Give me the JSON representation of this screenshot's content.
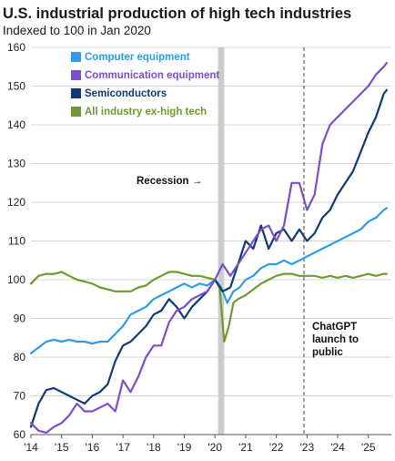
{
  "chart_data": {
    "type": "line",
    "title": "U.S. industrial production of high tech industries",
    "subtitle": "Indexed to 100 in Jan 2020",
    "ylim": [
      60,
      160
    ],
    "yticks": [
      60,
      70,
      80,
      90,
      100,
      110,
      120,
      130,
      140,
      150,
      160
    ],
    "xlim": [
      2014.0,
      2025.75
    ],
    "xticks": [
      {
        "value": 2014,
        "label": "'14"
      },
      {
        "value": 2015,
        "label": "'15"
      },
      {
        "value": 2016,
        "label": "'16"
      },
      {
        "value": 2017,
        "label": "'17"
      },
      {
        "value": 2018,
        "label": "'18"
      },
      {
        "value": 2019,
        "label": "'19"
      },
      {
        "value": 2020,
        "label": "'20"
      },
      {
        "value": 2021,
        "label": "'21"
      },
      {
        "value": 2022,
        "label": "'22"
      },
      {
        "value": 2023,
        "label": "'23"
      },
      {
        "value": 2024,
        "label": "'24"
      },
      {
        "value": 2025,
        "label": "'25"
      }
    ],
    "grid": true,
    "legend_position": "top-left",
    "series": [
      {
        "name": "Computer equipment",
        "color": "#2e9be8",
        "points": [
          [
            2014.0,
            81
          ],
          [
            2014.25,
            82.5
          ],
          [
            2014.5,
            84
          ],
          [
            2014.75,
            84.5
          ],
          [
            2015.0,
            84
          ],
          [
            2015.25,
            84.5
          ],
          [
            2015.5,
            84
          ],
          [
            2015.75,
            84
          ],
          [
            2016.0,
            83.5
          ],
          [
            2016.25,
            84
          ],
          [
            2016.5,
            84
          ],
          [
            2016.75,
            86
          ],
          [
            2017.0,
            88
          ],
          [
            2017.25,
            91
          ],
          [
            2017.5,
            92
          ],
          [
            2017.75,
            93
          ],
          [
            2018.0,
            95
          ],
          [
            2018.25,
            96
          ],
          [
            2018.5,
            97
          ],
          [
            2018.75,
            98
          ],
          [
            2019.0,
            99
          ],
          [
            2019.25,
            98
          ],
          [
            2019.5,
            99
          ],
          [
            2019.75,
            98.5
          ],
          [
            2020.0,
            100
          ],
          [
            2020.2,
            98
          ],
          [
            2020.4,
            94
          ],
          [
            2020.6,
            97
          ],
          [
            2020.8,
            98
          ],
          [
            2021.0,
            100
          ],
          [
            2021.25,
            101
          ],
          [
            2021.5,
            103
          ],
          [
            2021.75,
            104
          ],
          [
            2022.0,
            104
          ],
          [
            2022.25,
            105
          ],
          [
            2022.5,
            104
          ],
          [
            2022.75,
            105
          ],
          [
            2023.0,
            106
          ],
          [
            2023.25,
            107
          ],
          [
            2023.5,
            108
          ],
          [
            2023.75,
            109
          ],
          [
            2024.0,
            110
          ],
          [
            2024.25,
            111
          ],
          [
            2024.5,
            112
          ],
          [
            2024.75,
            113
          ],
          [
            2025.0,
            115
          ],
          [
            2025.25,
            116
          ],
          [
            2025.5,
            118
          ],
          [
            2025.6,
            118.5
          ]
        ]
      },
      {
        "name": "Communication equipment",
        "color": "#7b4fc8",
        "points": [
          [
            2014.0,
            63
          ],
          [
            2014.25,
            61
          ],
          [
            2014.5,
            60.5
          ],
          [
            2014.75,
            62
          ],
          [
            2015.0,
            63
          ],
          [
            2015.25,
            65
          ],
          [
            2015.5,
            68
          ],
          [
            2015.75,
            66
          ],
          [
            2016.0,
            66
          ],
          [
            2016.25,
            67
          ],
          [
            2016.5,
            68
          ],
          [
            2016.75,
            66
          ],
          [
            2017.0,
            74
          ],
          [
            2017.25,
            71
          ],
          [
            2017.5,
            75
          ],
          [
            2017.75,
            80
          ],
          [
            2018.0,
            83
          ],
          [
            2018.25,
            83
          ],
          [
            2018.5,
            89
          ],
          [
            2018.75,
            92
          ],
          [
            2019.0,
            93
          ],
          [
            2019.25,
            95
          ],
          [
            2019.5,
            96
          ],
          [
            2019.75,
            97
          ],
          [
            2020.0,
            100
          ],
          [
            2020.25,
            104
          ],
          [
            2020.5,
            101
          ],
          [
            2020.75,
            104
          ],
          [
            2021.0,
            107
          ],
          [
            2021.25,
            110
          ],
          [
            2021.5,
            113
          ],
          [
            2021.75,
            114
          ],
          [
            2022.0,
            110
          ],
          [
            2022.25,
            114
          ],
          [
            2022.5,
            125
          ],
          [
            2022.75,
            125
          ],
          [
            2023.0,
            118
          ],
          [
            2023.25,
            122
          ],
          [
            2023.5,
            135
          ],
          [
            2023.75,
            140
          ],
          [
            2024.0,
            142
          ],
          [
            2024.25,
            144
          ],
          [
            2024.5,
            146
          ],
          [
            2024.75,
            148
          ],
          [
            2025.0,
            150
          ],
          [
            2025.25,
            153
          ],
          [
            2025.5,
            155
          ],
          [
            2025.6,
            156
          ]
        ]
      },
      {
        "name": "Semiconductors",
        "color": "#0f3a73",
        "points": [
          [
            2014.0,
            62
          ],
          [
            2014.25,
            68
          ],
          [
            2014.5,
            71.5
          ],
          [
            2014.75,
            72
          ],
          [
            2015.0,
            71
          ],
          [
            2015.25,
            70
          ],
          [
            2015.5,
            69
          ],
          [
            2015.75,
            68
          ],
          [
            2016.0,
            70
          ],
          [
            2016.25,
            71
          ],
          [
            2016.5,
            73
          ],
          [
            2016.75,
            79
          ],
          [
            2017.0,
            83
          ],
          [
            2017.25,
            84
          ],
          [
            2017.5,
            86
          ],
          [
            2017.75,
            88
          ],
          [
            2018.0,
            91
          ],
          [
            2018.25,
            92
          ],
          [
            2018.5,
            95
          ],
          [
            2018.75,
            93
          ],
          [
            2019.0,
            90
          ],
          [
            2019.25,
            93
          ],
          [
            2019.5,
            95
          ],
          [
            2019.75,
            97
          ],
          [
            2020.0,
            100
          ],
          [
            2020.25,
            97
          ],
          [
            2020.5,
            98
          ],
          [
            2020.75,
            104
          ],
          [
            2021.0,
            110
          ],
          [
            2021.25,
            108
          ],
          [
            2021.5,
            114
          ],
          [
            2021.75,
            108
          ],
          [
            2022.0,
            112
          ],
          [
            2022.25,
            113
          ],
          [
            2022.5,
            110
          ],
          [
            2022.75,
            113
          ],
          [
            2023.0,
            110
          ],
          [
            2023.25,
            112
          ],
          [
            2023.5,
            116
          ],
          [
            2023.75,
            118
          ],
          [
            2024.0,
            122
          ],
          [
            2024.25,
            125
          ],
          [
            2024.5,
            128
          ],
          [
            2024.75,
            133
          ],
          [
            2025.0,
            138
          ],
          [
            2025.25,
            142
          ],
          [
            2025.5,
            148
          ],
          [
            2025.6,
            149
          ]
        ]
      },
      {
        "name": "All industry ex-high tech",
        "color": "#6f9a2f",
        "points": [
          [
            2014.0,
            99
          ],
          [
            2014.25,
            101
          ],
          [
            2014.5,
            101.5
          ],
          [
            2014.75,
            101.5
          ],
          [
            2015.0,
            102
          ],
          [
            2015.25,
            101
          ],
          [
            2015.5,
            100
          ],
          [
            2015.75,
            99.5
          ],
          [
            2016.0,
            99
          ],
          [
            2016.25,
            98
          ],
          [
            2016.5,
            97.5
          ],
          [
            2016.75,
            97
          ],
          [
            2017.0,
            97
          ],
          [
            2017.25,
            97
          ],
          [
            2017.5,
            98
          ],
          [
            2017.75,
            98.5
          ],
          [
            2018.0,
            100
          ],
          [
            2018.25,
            101
          ],
          [
            2018.5,
            102
          ],
          [
            2018.75,
            102
          ],
          [
            2019.0,
            101.5
          ],
          [
            2019.25,
            101
          ],
          [
            2019.5,
            101
          ],
          [
            2019.75,
            100.5
          ],
          [
            2020.0,
            100
          ],
          [
            2020.15,
            98
          ],
          [
            2020.3,
            84
          ],
          [
            2020.45,
            88
          ],
          [
            2020.6,
            94
          ],
          [
            2020.75,
            95
          ],
          [
            2021.0,
            96
          ],
          [
            2021.25,
            97.5
          ],
          [
            2021.5,
            99
          ],
          [
            2021.75,
            100
          ],
          [
            2022.0,
            101
          ],
          [
            2022.25,
            101.5
          ],
          [
            2022.5,
            101.5
          ],
          [
            2022.75,
            101
          ],
          [
            2023.0,
            101
          ],
          [
            2023.25,
            101
          ],
          [
            2023.5,
            100.5
          ],
          [
            2023.75,
            101
          ],
          [
            2024.0,
            100.5
          ],
          [
            2024.25,
            101
          ],
          [
            2024.5,
            100.5
          ],
          [
            2024.75,
            101
          ],
          [
            2025.0,
            101.5
          ],
          [
            2025.25,
            101
          ],
          [
            2025.5,
            101.5
          ],
          [
            2025.6,
            101.5
          ]
        ]
      }
    ],
    "recession_band": {
      "start": 2020.1,
      "end": 2020.3,
      "color": "#cccccc"
    },
    "annotations": {
      "recession_label": "Recession",
      "recession_arrow": "→",
      "chatgpt_label": [
        "ChatGPT",
        "launch to",
        "public"
      ],
      "chatgpt_date": 2022.9
    }
  }
}
